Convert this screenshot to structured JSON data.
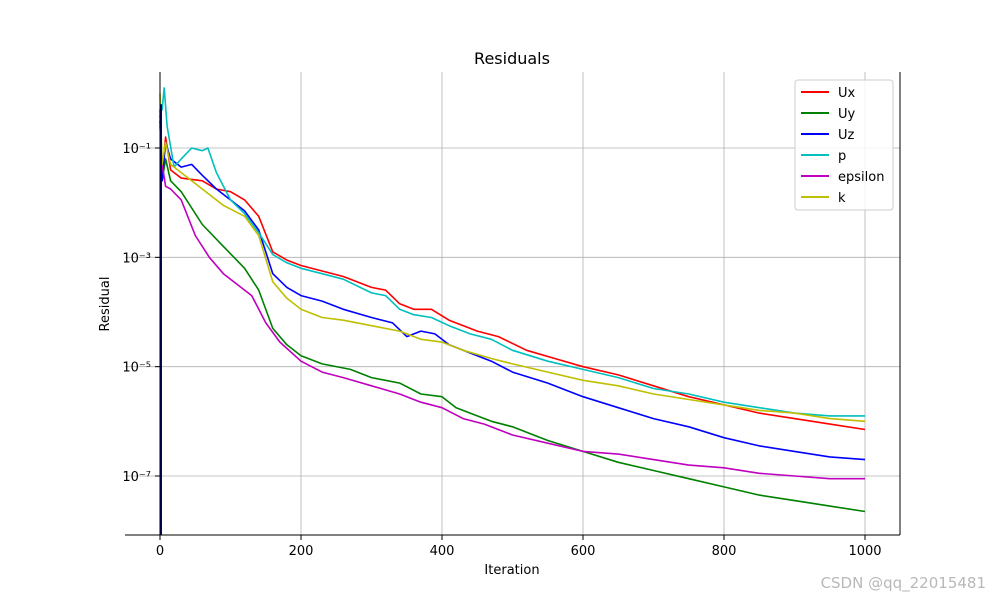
{
  "chart_data": {
    "type": "line",
    "title": "Residuals",
    "xlabel": "Iteration",
    "ylabel": "Residual",
    "xlim": [
      0,
      1050
    ],
    "ylim_log10": [
      -8.1,
      0.35
    ],
    "y_scale": "log",
    "grid": true,
    "legend_position": "top-right",
    "x_ticks": [
      0,
      200,
      400,
      600,
      800,
      1000
    ],
    "y_ticks": [
      {
        "exp": -1,
        "label": "10⁻¹"
      },
      {
        "exp": -3,
        "label": "10⁻³"
      },
      {
        "exp": -5,
        "label": "10⁻⁵"
      },
      {
        "exp": -7,
        "label": "10⁻⁷"
      }
    ],
    "series": [
      {
        "name": "Ux",
        "color": "#ff0000",
        "points_log10": [
          [
            0,
            -0.3
          ],
          [
            3,
            -1.5
          ],
          [
            8,
            -0.8
          ],
          [
            15,
            -1.4
          ],
          [
            30,
            -1.55
          ],
          [
            60,
            -1.6
          ],
          [
            80,
            -1.75
          ],
          [
            100,
            -1.8
          ],
          [
            120,
            -1.95
          ],
          [
            140,
            -2.25
          ],
          [
            160,
            -2.9
          ],
          [
            180,
            -3.05
          ],
          [
            200,
            -3.15
          ],
          [
            230,
            -3.25
          ],
          [
            260,
            -3.35
          ],
          [
            300,
            -3.55
          ],
          [
            320,
            -3.6
          ],
          [
            340,
            -3.85
          ],
          [
            360,
            -3.95
          ],
          [
            385,
            -3.95
          ],
          [
            410,
            -4.15
          ],
          [
            450,
            -4.35
          ],
          [
            480,
            -4.45
          ],
          [
            520,
            -4.7
          ],
          [
            560,
            -4.85
          ],
          [
            600,
            -5.0
          ],
          [
            650,
            -5.15
          ],
          [
            700,
            -5.35
          ],
          [
            750,
            -5.55
          ],
          [
            800,
            -5.7
          ],
          [
            850,
            -5.85
          ],
          [
            900,
            -5.95
          ],
          [
            950,
            -6.05
          ],
          [
            1000,
            -6.15
          ]
        ]
      },
      {
        "name": "Uy",
        "color": "#008000",
        "points_log10": [
          [
            0,
            -0.4
          ],
          [
            3,
            -1.6
          ],
          [
            8,
            -1.2
          ],
          [
            15,
            -1.6
          ],
          [
            30,
            -1.8
          ],
          [
            60,
            -2.4
          ],
          [
            90,
            -2.8
          ],
          [
            120,
            -3.2
          ],
          [
            140,
            -3.6
          ],
          [
            160,
            -4.3
          ],
          [
            180,
            -4.6
          ],
          [
            200,
            -4.8
          ],
          [
            230,
            -4.95
          ],
          [
            270,
            -5.05
          ],
          [
            300,
            -5.2
          ],
          [
            340,
            -5.3
          ],
          [
            370,
            -5.5
          ],
          [
            400,
            -5.55
          ],
          [
            420,
            -5.75
          ],
          [
            450,
            -5.9
          ],
          [
            470,
            -6.0
          ],
          [
            500,
            -6.1
          ],
          [
            550,
            -6.35
          ],
          [
            600,
            -6.55
          ],
          [
            650,
            -6.75
          ],
          [
            700,
            -6.9
          ],
          [
            750,
            -7.05
          ],
          [
            800,
            -7.2
          ],
          [
            850,
            -7.35
          ],
          [
            900,
            -7.45
          ],
          [
            950,
            -7.55
          ],
          [
            1000,
            -7.65
          ]
        ]
      },
      {
        "name": "Uz",
        "color": "#0000ff",
        "points_log10": [
          [
            0,
            -0.5
          ],
          [
            3,
            -1.6
          ],
          [
            8,
            -0.9
          ],
          [
            15,
            -1.2
          ],
          [
            30,
            -1.35
          ],
          [
            45,
            -1.3
          ],
          [
            60,
            -1.5
          ],
          [
            80,
            -1.75
          ],
          [
            100,
            -1.95
          ],
          [
            120,
            -2.15
          ],
          [
            140,
            -2.5
          ],
          [
            160,
            -3.3
          ],
          [
            180,
            -3.55
          ],
          [
            200,
            -3.7
          ],
          [
            230,
            -3.8
          ],
          [
            260,
            -3.95
          ],
          [
            300,
            -4.1
          ],
          [
            330,
            -4.2
          ],
          [
            350,
            -4.45
          ],
          [
            370,
            -4.35
          ],
          [
            390,
            -4.4
          ],
          [
            410,
            -4.6
          ],
          [
            440,
            -4.75
          ],
          [
            470,
            -4.9
          ],
          [
            500,
            -5.1
          ],
          [
            550,
            -5.3
          ],
          [
            600,
            -5.55
          ],
          [
            650,
            -5.75
          ],
          [
            700,
            -5.95
          ],
          [
            750,
            -6.1
          ],
          [
            800,
            -6.3
          ],
          [
            850,
            -6.45
          ],
          [
            900,
            -6.55
          ],
          [
            950,
            -6.65
          ],
          [
            1000,
            -6.7
          ]
        ]
      },
      {
        "name": "p",
        "color": "#00bfbf",
        "points_log10": [
          [
            0,
            -0.35
          ],
          [
            3,
            -0.3
          ],
          [
            6,
            0.1
          ],
          [
            10,
            -0.6
          ],
          [
            20,
            -1.35
          ],
          [
            30,
            -1.2
          ],
          [
            45,
            -1.0
          ],
          [
            60,
            -1.05
          ],
          [
            68,
            -1.0
          ],
          [
            80,
            -1.45
          ],
          [
            100,
            -1.95
          ],
          [
            120,
            -2.2
          ],
          [
            140,
            -2.55
          ],
          [
            160,
            -2.95
          ],
          [
            180,
            -3.1
          ],
          [
            200,
            -3.2
          ],
          [
            230,
            -3.3
          ],
          [
            260,
            -3.4
          ],
          [
            300,
            -3.65
          ],
          [
            320,
            -3.7
          ],
          [
            340,
            -3.95
          ],
          [
            360,
            -4.05
          ],
          [
            385,
            -4.1
          ],
          [
            410,
            -4.25
          ],
          [
            440,
            -4.4
          ],
          [
            470,
            -4.5
          ],
          [
            500,
            -4.7
          ],
          [
            550,
            -4.9
          ],
          [
            600,
            -5.05
          ],
          [
            650,
            -5.2
          ],
          [
            700,
            -5.4
          ],
          [
            750,
            -5.5
          ],
          [
            800,
            -5.65
          ],
          [
            850,
            -5.75
          ],
          [
            900,
            -5.85
          ],
          [
            950,
            -5.9
          ],
          [
            1000,
            -5.9
          ]
        ]
      },
      {
        "name": "epsilon",
        "color": "#bf00bf",
        "points_log10": [
          [
            0,
            -0.6
          ],
          [
            3,
            -1.3
          ],
          [
            8,
            -1.7
          ],
          [
            15,
            -1.75
          ],
          [
            30,
            -1.95
          ],
          [
            50,
            -2.6
          ],
          [
            70,
            -3.0
          ],
          [
            90,
            -3.3
          ],
          [
            110,
            -3.5
          ],
          [
            130,
            -3.7
          ],
          [
            150,
            -4.2
          ],
          [
            170,
            -4.55
          ],
          [
            200,
            -4.9
          ],
          [
            230,
            -5.1
          ],
          [
            260,
            -5.2
          ],
          [
            300,
            -5.35
          ],
          [
            340,
            -5.5
          ],
          [
            370,
            -5.65
          ],
          [
            400,
            -5.75
          ],
          [
            430,
            -5.95
          ],
          [
            460,
            -6.05
          ],
          [
            500,
            -6.25
          ],
          [
            550,
            -6.4
          ],
          [
            600,
            -6.55
          ],
          [
            650,
            -6.6
          ],
          [
            700,
            -6.7
          ],
          [
            750,
            -6.8
          ],
          [
            800,
            -6.85
          ],
          [
            850,
            -6.95
          ],
          [
            900,
            -7.0
          ],
          [
            950,
            -7.05
          ],
          [
            1000,
            -7.05
          ]
        ]
      },
      {
        "name": "k",
        "color": "#bfbf00",
        "points_log10": [
          [
            0,
            0.0
          ],
          [
            3,
            -1.3
          ],
          [
            8,
            -0.9
          ],
          [
            15,
            -1.3
          ],
          [
            30,
            -1.45
          ],
          [
            60,
            -1.75
          ],
          [
            90,
            -2.05
          ],
          [
            120,
            -2.25
          ],
          [
            140,
            -2.6
          ],
          [
            160,
            -3.45
          ],
          [
            180,
            -3.75
          ],
          [
            200,
            -3.95
          ],
          [
            230,
            -4.1
          ],
          [
            260,
            -4.15
          ],
          [
            300,
            -4.25
          ],
          [
            340,
            -4.35
          ],
          [
            370,
            -4.5
          ],
          [
            400,
            -4.55
          ],
          [
            430,
            -4.7
          ],
          [
            470,
            -4.85
          ],
          [
            500,
            -4.95
          ],
          [
            550,
            -5.1
          ],
          [
            600,
            -5.25
          ],
          [
            650,
            -5.35
          ],
          [
            700,
            -5.5
          ],
          [
            750,
            -5.6
          ],
          [
            800,
            -5.7
          ],
          [
            850,
            -5.8
          ],
          [
            900,
            -5.85
          ],
          [
            950,
            -5.95
          ],
          [
            1000,
            -6.0
          ]
        ]
      }
    ]
  },
  "watermark": "CSDN @qq_22015481"
}
